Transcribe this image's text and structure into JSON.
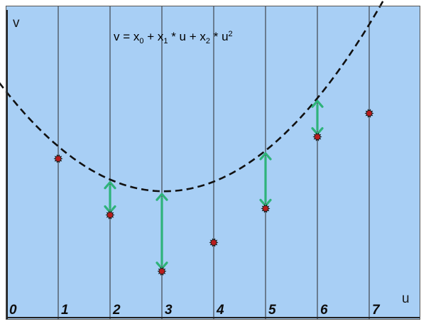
{
  "figure": {
    "y_axis_label": "v",
    "x_axis_label": "u",
    "formula": {
      "parts": [
        {
          "text": "v = x",
          "role": "normal"
        },
        {
          "text": "0",
          "role": "sub"
        },
        {
          "text": " + x",
          "role": "normal"
        },
        {
          "text": "1",
          "role": "sub"
        },
        {
          "text": " * u + x",
          "role": "normal"
        },
        {
          "text": "2",
          "role": "sub"
        },
        {
          "text": " * u",
          "role": "normal"
        },
        {
          "text": "2",
          "role": "sup"
        }
      ]
    },
    "x_ticks": [
      "0",
      "1",
      "2",
      "3",
      "4",
      "5",
      "6",
      "7"
    ],
    "colors": {
      "background": "#a8cff5",
      "gridline": "#2a2a2a",
      "curve": "#111111",
      "point_fill": "#b81d1d",
      "point_ring": "#1a1a1a",
      "residual_arrow": "#2eb37a"
    },
    "fit_curve": {
      "style": "dashed",
      "u_range": [
        -0.4,
        7.75
      ],
      "v_equation_coeffs": {
        "x0": 5.1,
        "x1": -1.61,
        "x2": 0.264
      }
    },
    "observations": [
      {
        "u": 1,
        "v": 3.45,
        "residual_arrow": false
      },
      {
        "u": 2,
        "v": 2.06,
        "residual_arrow": true
      },
      {
        "u": 3,
        "v": 0.67,
        "residual_arrow": true
      },
      {
        "u": 4,
        "v": 1.38,
        "residual_arrow": false
      },
      {
        "u": 5,
        "v": 2.22,
        "residual_arrow": true
      },
      {
        "u": 6,
        "v": 3.99,
        "residual_arrow": true
      },
      {
        "u": 7,
        "v": 4.57,
        "residual_arrow": false
      }
    ]
  }
}
